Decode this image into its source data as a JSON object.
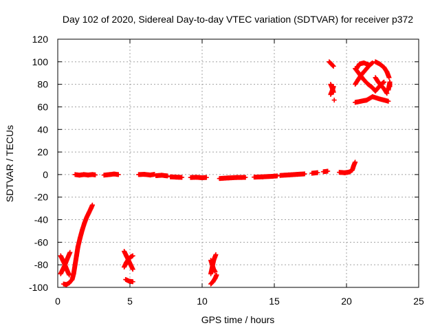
{
  "chart_data": {
    "type": "scatter",
    "title": "Day 102 of 2020, Sidereal Day-to-day VTEC variation (SDTVAR) for receiver p372",
    "xlabel": "GPS time / hours",
    "ylabel": "SDTVAR / TECUs",
    "xlim": [
      0,
      25
    ],
    "ylim": [
      -100,
      120
    ],
    "xticks": [
      0,
      5,
      10,
      15,
      20,
      25
    ],
    "yticks": [
      -100,
      -80,
      -60,
      -40,
      -20,
      0,
      20,
      40,
      60,
      80,
      100,
      120
    ],
    "grid": true,
    "marker": "+",
    "color": "#ff0000",
    "series": [
      {
        "name": "SDTVAR",
        "segments": [
          [
            [
              1.2,
              0
            ],
            [
              1.5,
              -0.5
            ],
            [
              1.8,
              0
            ],
            [
              2.1,
              -0.4
            ],
            [
              2.4,
              0
            ],
            [
              2.6,
              -0.3
            ]
          ],
          [
            [
              3.2,
              -0.5
            ],
            [
              3.6,
              0
            ],
            [
              3.9,
              0.5
            ],
            [
              4.2,
              0
            ]
          ],
          [
            [
              5.6,
              0
            ],
            [
              6.0,
              0.2
            ],
            [
              6.4,
              -0.4
            ],
            [
              6.7,
              0.2
            ]
          ],
          [
            [
              6.8,
              -1
            ],
            [
              7.2,
              -0.6
            ],
            [
              7.6,
              -1.2
            ]
          ],
          [
            [
              7.8,
              -2
            ],
            [
              8.2,
              -2.3
            ],
            [
              8.6,
              -2.5
            ]
          ],
          [
            [
              9.2,
              -2.6
            ],
            [
              9.6,
              -2.4
            ],
            [
              10.0,
              -2.8
            ],
            [
              10.3,
              -2.6
            ]
          ],
          [
            [
              11.2,
              -3.5
            ],
            [
              11.8,
              -3
            ],
            [
              12.4,
              -2.6
            ],
            [
              13.0,
              -2.5
            ]
          ],
          [
            [
              13.6,
              -2.3
            ],
            [
              14.2,
              -2
            ],
            [
              14.8,
              -1.6
            ],
            [
              15.2,
              -1.2
            ]
          ],
          [
            [
              15.4,
              -0.8
            ],
            [
              16.0,
              -0.3
            ],
            [
              16.6,
              0.2
            ],
            [
              17.1,
              0.6
            ]
          ],
          [
            [
              17.6,
              1.2
            ],
            [
              18.0,
              1.7
            ]
          ],
          [
            [
              18.4,
              2.5
            ],
            [
              18.7,
              3
            ]
          ],
          [
            [
              19.5,
              2
            ],
            [
              19.9,
              1.6
            ],
            [
              20.2,
              2.3
            ],
            [
              20.4,
              4
            ],
            [
              20.5,
              8
            ],
            [
              20.6,
              11
            ]
          ],
          [
            [
              0.4,
              -97
            ],
            [
              0.6,
              -97.5
            ],
            [
              0.8,
              -96
            ],
            [
              1.0,
              -93
            ],
            [
              1.1,
              -88
            ],
            [
              1.2,
              -80
            ],
            [
              1.3,
              -72
            ],
            [
              1.4,
              -64
            ],
            [
              1.55,
              -56
            ],
            [
              1.7,
              -49
            ],
            [
              1.85,
              -43
            ],
            [
              2.0,
              -38
            ],
            [
              2.15,
              -34
            ],
            [
              2.3,
              -30
            ],
            [
              2.4,
              -27
            ]
          ],
          [
            [
              0.2,
              -72
            ],
            [
              0.35,
              -76
            ],
            [
              0.5,
              -80
            ],
            [
              0.65,
              -85
            ],
            [
              0.8,
              -89
            ]
          ],
          [
            [
              0.2,
              -88
            ],
            [
              0.35,
              -84
            ],
            [
              0.5,
              -80
            ],
            [
              0.65,
              -75
            ],
            [
              0.85,
              -69
            ]
          ],
          [
            [
              4.6,
              -68
            ],
            [
              4.75,
              -72
            ],
            [
              4.9,
              -76
            ],
            [
              5.05,
              -80
            ],
            [
              5.2,
              -84
            ]
          ],
          [
            [
              4.6,
              -82
            ],
            [
              4.75,
              -78
            ],
            [
              4.9,
              -75
            ],
            [
              5.05,
              -73
            ],
            [
              5.2,
              -72
            ]
          ],
          [
            [
              4.7,
              -93
            ],
            [
              4.95,
              -94.5
            ],
            [
              5.2,
              -95
            ]
          ],
          [
            [
              10.6,
              -76
            ],
            [
              10.7,
              -80
            ],
            [
              10.8,
              -84
            ],
            [
              10.9,
              -86
            ]
          ],
          [
            [
              10.6,
              -88
            ],
            [
              10.7,
              -82
            ],
            [
              10.8,
              -76
            ],
            [
              10.95,
              -71
            ]
          ],
          [
            [
              10.6,
              -97
            ],
            [
              10.75,
              -95
            ],
            [
              10.9,
              -92
            ],
            [
              11.0,
              -89
            ]
          ],
          [
            [
              18.8,
              100
            ],
            [
              18.95,
              98
            ],
            [
              19.1,
              96
            ]
          ],
          [
            [
              18.9,
              80
            ],
            [
              19.0,
              77
            ],
            [
              19.1,
              73
            ]
          ],
          [
            [
              18.9,
              71
            ],
            [
              19.0,
              74
            ],
            [
              19.1,
              78
            ]
          ],
          [
            [
              19.15,
              66
            ]
          ],
          [
            [
              20.7,
              94
            ],
            [
              20.9,
              98
            ],
            [
              21.2,
              99
            ],
            [
              21.6,
              97
            ]
          ],
          [
            [
              20.6,
              80
            ],
            [
              20.8,
              84
            ],
            [
              21.0,
              88
            ],
            [
              21.2,
              91
            ],
            [
              21.4,
              94
            ],
            [
              21.6,
              97
            ],
            [
              21.8,
              99
            ]
          ],
          [
            [
              20.6,
              94
            ],
            [
              20.9,
              89
            ],
            [
              21.2,
              84
            ],
            [
              21.5,
              80
            ],
            [
              21.8,
              77
            ],
            [
              22.0,
              74
            ]
          ],
          [
            [
              22.0,
              100
            ],
            [
              22.3,
              98
            ],
            [
              22.6,
              95
            ],
            [
              22.8,
              91
            ],
            [
              22.95,
              86
            ]
          ],
          [
            [
              22.0,
              74
            ],
            [
              22.2,
              77
            ],
            [
              22.4,
              80
            ],
            [
              22.6,
              82
            ]
          ],
          [
            [
              22.0,
              86
            ],
            [
              22.2,
              82
            ],
            [
              22.4,
              79
            ],
            [
              22.6,
              76
            ],
            [
              22.8,
              72
            ]
          ],
          [
            [
              23.0,
              78
            ],
            [
              23.0,
              82
            ],
            [
              22.9,
              75
            ]
          ],
          [
            [
              20.6,
              64
            ],
            [
              21.4,
              66
            ],
            [
              21.8,
              69
            ],
            [
              22.3,
              67
            ],
            [
              22.9,
              65
            ]
          ]
        ]
      }
    ]
  }
}
